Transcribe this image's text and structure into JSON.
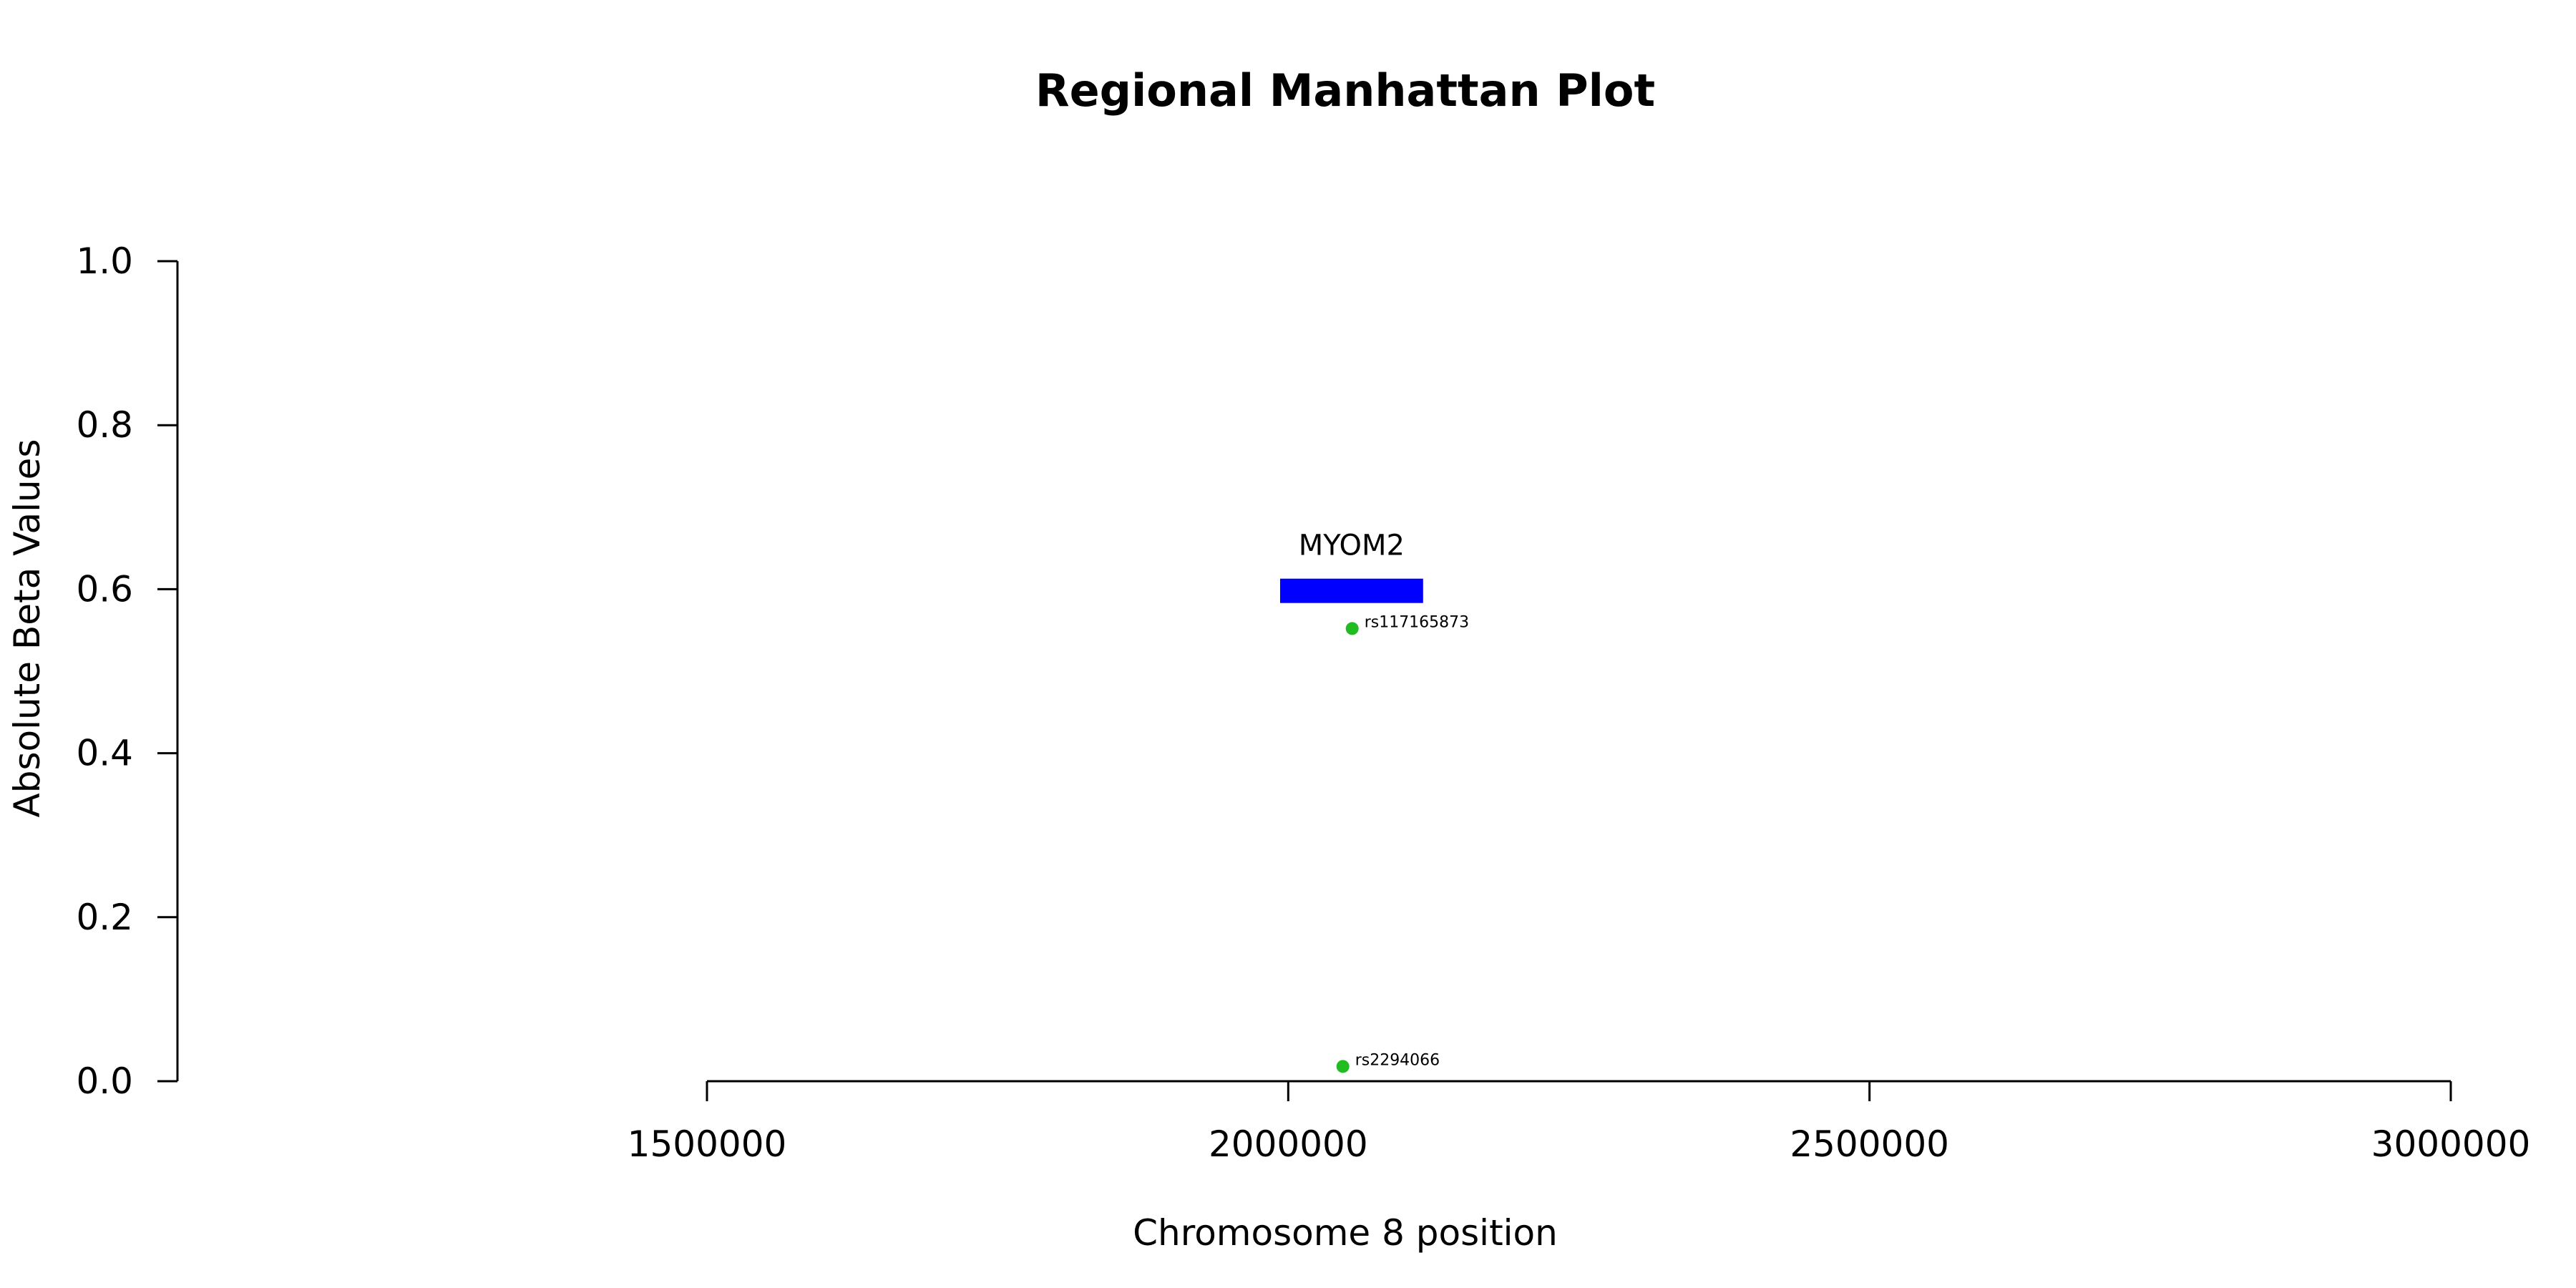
{
  "chart_data": {
    "type": "scatter",
    "title": "Regional Manhattan Plot",
    "xlabel": "Chromosome 8 position",
    "ylabel": "Absolute Beta Values",
    "xlim": [
      1500000,
      3000000
    ],
    "ylim": [
      0.0,
      1.0
    ],
    "x_ticks": [
      1500000,
      2000000,
      2500000,
      3000000
    ],
    "x_tick_labels": [
      "1500000",
      "2000000",
      "2500000",
      "3000000"
    ],
    "y_ticks": [
      0.0,
      0.2,
      0.4,
      0.6,
      0.8,
      1.0
    ],
    "y_tick_labels": [
      "0.0",
      "0.2",
      "0.4",
      "0.6",
      "0.8",
      "1.0"
    ],
    "grid": false,
    "points": [
      {
        "label": "rs117165873",
        "x": 2055000,
        "y": 0.552,
        "color": "#22bb22"
      },
      {
        "label": "rs2294066",
        "x": 2047000,
        "y": 0.018,
        "color": "#22bb22"
      }
    ],
    "genes": [
      {
        "name": "MYOM2",
        "start": 1993000,
        "end": 2116000,
        "y": 0.598,
        "color": "#0000ff"
      }
    ]
  }
}
